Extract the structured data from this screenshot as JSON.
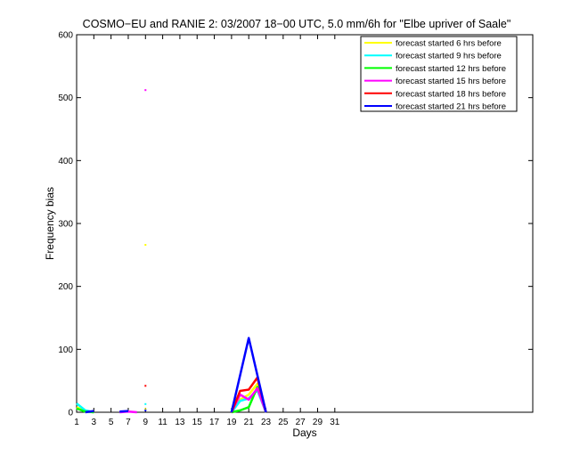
{
  "chart_data": {
    "type": "line",
    "title": "COSMO−EU and RANIE 2: 03/2007 18−00 UTC, 5.0 mm/6h for \"Elbe upriver of Saale\"",
    "xlabel": "Days",
    "ylabel": "Frequency bias",
    "xlim": [
      1,
      54
    ],
    "ylim": [
      0,
      600
    ],
    "xticks": [
      1,
      3,
      5,
      7,
      9,
      11,
      13,
      15,
      17,
      19,
      21,
      23,
      25,
      27,
      29,
      31
    ],
    "xtick_labels": [
      "1",
      "3",
      "5",
      "7",
      "9",
      "11",
      "13",
      "15",
      "17",
      "19",
      "21",
      "23",
      "25",
      "27",
      "29",
      "31"
    ],
    "yticks": [
      0,
      100,
      200,
      300,
      400,
      500,
      600
    ],
    "ytick_labels": [
      "0",
      "100",
      "200",
      "300",
      "400",
      "500",
      "600"
    ],
    "grid": false,
    "legend_position": "top-right",
    "series": [
      {
        "name": "forecast started 6 hrs before",
        "color": "#ffff00",
        "segments": [
          [
            [
              1,
              8
            ],
            [
              2,
              2
            ],
            [
              3,
              0
            ]
          ],
          [
            [
              19,
              0
            ],
            [
              20,
              20
            ],
            [
              21,
              28
            ],
            [
              22,
              45
            ],
            [
              23,
              0
            ]
          ]
        ],
        "points": [
          [
            9,
            266
          ],
          [
            9,
            5
          ]
        ]
      },
      {
        "name": "forecast started 9 hrs before",
        "color": "#00ffff",
        "segments": [
          [
            [
              1,
              14
            ],
            [
              2,
              3
            ],
            [
              3,
              0
            ]
          ],
          [
            [
              19,
              0
            ],
            [
              20,
              18
            ],
            [
              21,
              22
            ],
            [
              22,
              35
            ],
            [
              23,
              0
            ]
          ]
        ],
        "points": [
          [
            9,
            13
          ]
        ]
      },
      {
        "name": "forecast started 12 hrs before",
        "color": "#00ff00",
        "segments": [
          [
            [
              1,
              6
            ],
            [
              2,
              1
            ],
            [
              3,
              0
            ]
          ],
          [
            [
              19,
              0
            ],
            [
              20,
              3
            ],
            [
              21,
              8
            ],
            [
              22,
              40
            ],
            [
              23,
              0
            ]
          ]
        ],
        "points": []
      },
      {
        "name": "forecast started 15 hrs before",
        "color": "#ff00ff",
        "segments": [
          [
            [
              6,
              0
            ],
            [
              7,
              1
            ],
            [
              8,
              0
            ]
          ],
          [
            [
              19,
              0
            ],
            [
              20,
              28
            ],
            [
              21,
              20
            ],
            [
              22,
              38
            ],
            [
              23,
              0
            ]
          ]
        ],
        "points": [
          [
            9,
            512
          ]
        ]
      },
      {
        "name": "forecast started 18 hrs before",
        "color": "#ff0000",
        "segments": [
          [
            [
              19,
              0
            ],
            [
              20,
              34
            ],
            [
              21,
              36
            ],
            [
              22,
              55
            ],
            [
              23,
              0
            ]
          ]
        ],
        "points": [
          [
            9,
            42
          ]
        ]
      },
      {
        "name": "forecast started 21 hrs before",
        "color": "#0000ff",
        "segments": [
          [
            [
              2,
              0
            ],
            [
              3,
              2
            ]
          ],
          [
            [
              6,
              1
            ],
            [
              7,
              2
            ]
          ],
          [
            [
              19,
              0
            ],
            [
              21,
              118
            ],
            [
              23,
              0
            ]
          ]
        ],
        "points": [
          [
            9,
            3
          ]
        ]
      }
    ]
  }
}
